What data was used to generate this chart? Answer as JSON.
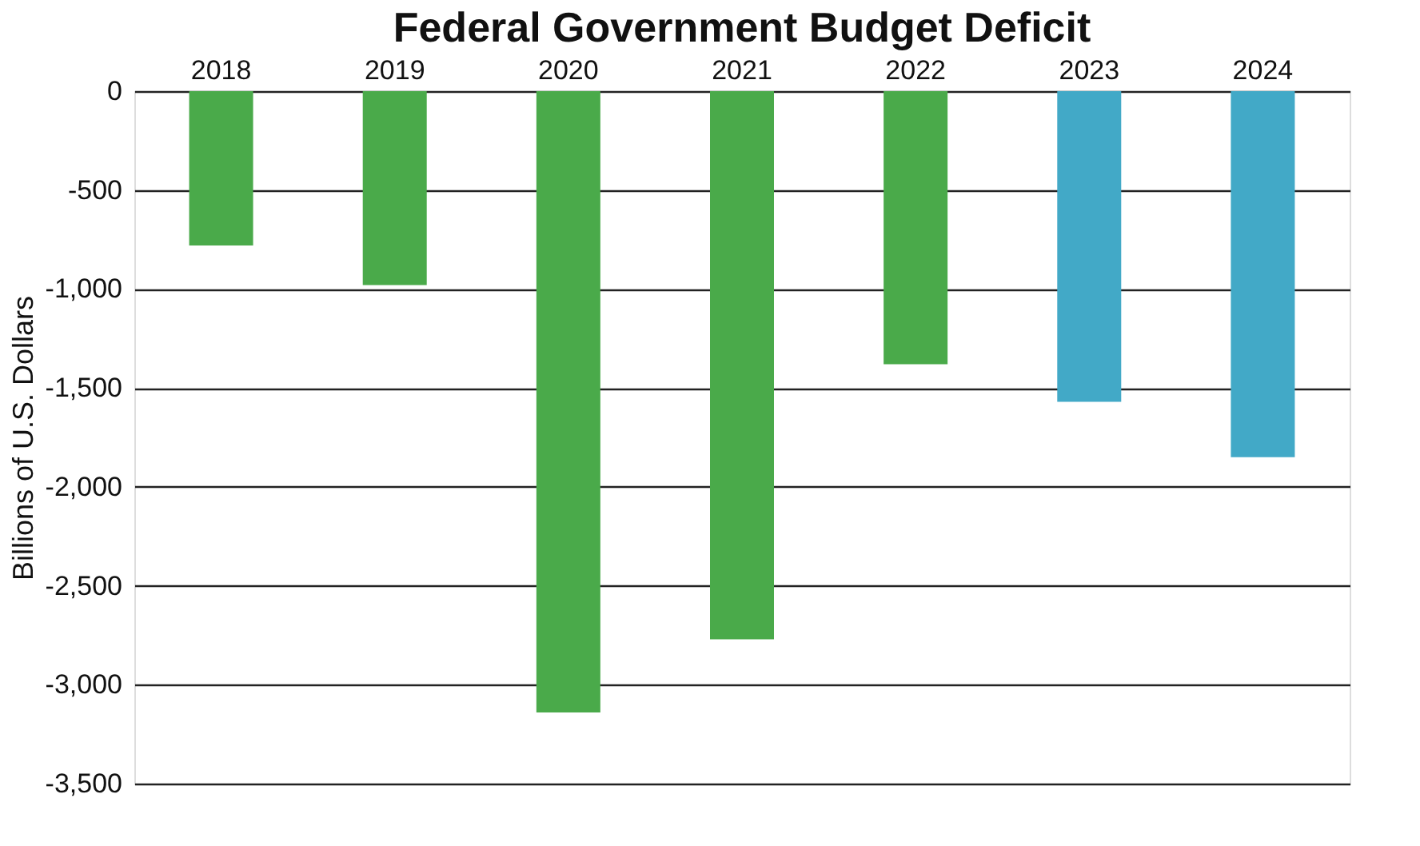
{
  "chart_data": {
    "type": "bar",
    "title": "Federal Government Budget Deficit",
    "ylabel": "Billions of U.S. Dollars",
    "categories": [
      "2018",
      "2019",
      "2020",
      "2021",
      "2022",
      "2023",
      "2024"
    ],
    "values": [
      -780,
      -980,
      -3140,
      -2770,
      -1380,
      -1570,
      -1850
    ],
    "colors": [
      "#4aaa4a",
      "#4aaa4a",
      "#4aaa4a",
      "#4aaa4a",
      "#4aaa4a",
      "#42a9c7",
      "#42a9c7"
    ],
    "ylim": [
      -3500,
      0
    ],
    "yticks": [
      0,
      {
        "value": -500,
        "label": "-500"
      },
      {
        "value": -1000,
        "label": "-1,000"
      },
      {
        "value": -1500,
        "label": "-1,500"
      },
      {
        "value": -2000,
        "label": "-2,000"
      },
      {
        "value": -2500,
        "label": "-2,500"
      },
      {
        "value": -3000,
        "label": "-3,000"
      },
      {
        "value": -3500,
        "label": "-3,500"
      }
    ],
    "grid": "y"
  }
}
